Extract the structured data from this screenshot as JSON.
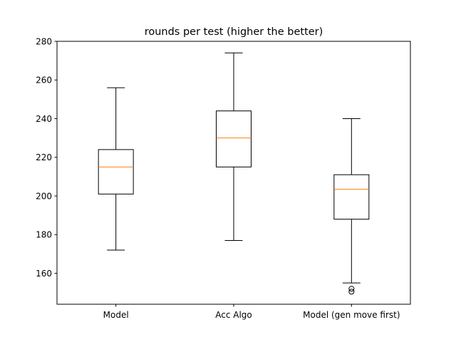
{
  "chart_data": {
    "type": "boxplot",
    "title": "rounds per test (higher the better)",
    "xlabel": "",
    "ylabel": "",
    "ylim": [
      144,
      280
    ],
    "yticks": [
      160,
      180,
      200,
      220,
      240,
      260,
      280
    ],
    "categories": [
      "Model",
      "Acc Algo",
      "Model (gen move first)"
    ],
    "boxes": [
      {
        "category": "Model",
        "whisker_low": 172,
        "q1": 201,
        "median": 215,
        "q3": 224,
        "whisker_high": 256,
        "outliers": []
      },
      {
        "category": "Acc Algo",
        "whisker_low": 177,
        "q1": 215,
        "median": 230,
        "q3": 244,
        "whisker_high": 274,
        "outliers": []
      },
      {
        "category": "Model (gen move first)",
        "whisker_low": 155,
        "q1": 188,
        "median": 203.5,
        "q3": 211,
        "whisker_high": 240,
        "outliers": [
          152,
          150.5
        ]
      }
    ],
    "grid": false,
    "legend": "none",
    "colors": {
      "box": "#000000",
      "median": "#ff7f0e",
      "outlier": "#000000"
    }
  }
}
